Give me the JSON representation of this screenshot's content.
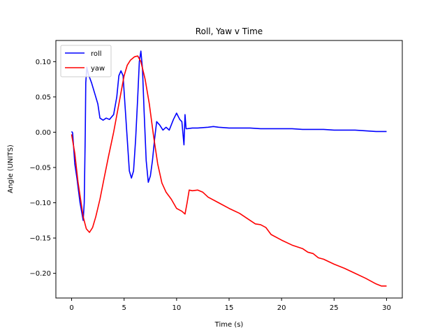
{
  "chart_data": {
    "type": "line",
    "title": "Roll, Yaw v Time",
    "xlabel": "Time (s)",
    "ylabel": "Angle (UNITS)",
    "xlim": [
      -1.5,
      31.5
    ],
    "ylim": [
      -0.235,
      0.13
    ],
    "xticks": [
      0,
      5,
      10,
      15,
      20,
      25,
      30
    ],
    "xtick_labels": [
      "0",
      "5",
      "10",
      "15",
      "20",
      "25",
      "30"
    ],
    "yticks": [
      0.1,
      0.05,
      0.0,
      -0.05,
      -0.1,
      -0.15,
      -0.2
    ],
    "ytick_labels": [
      "0.10",
      "0.05",
      "0.00",
      "−0.05",
      "−0.10",
      "−0.15",
      "−0.20"
    ],
    "grid": false,
    "legend": "upper left",
    "series": [
      {
        "name": "roll",
        "color": "#0000ff",
        "points": [
          [
            0,
            0.001
          ],
          [
            0.1,
            -0.001
          ],
          [
            0.3,
            -0.045
          ],
          [
            0.5,
            -0.065
          ],
          [
            0.8,
            -0.1
          ],
          [
            1.1,
            -0.125
          ],
          [
            1.2,
            -0.1
          ],
          [
            1.3,
            0.0
          ],
          [
            1.35,
            0.07
          ],
          [
            1.45,
            0.092
          ],
          [
            1.6,
            0.082
          ],
          [
            1.9,
            0.07
          ],
          [
            2.2,
            0.055
          ],
          [
            2.5,
            0.04
          ],
          [
            2.7,
            0.02
          ],
          [
            3.0,
            0.017
          ],
          [
            3.3,
            0.02
          ],
          [
            3.6,
            0.018
          ],
          [
            4.0,
            0.025
          ],
          [
            4.3,
            0.05
          ],
          [
            4.5,
            0.08
          ],
          [
            4.7,
            0.087
          ],
          [
            4.9,
            0.08
          ],
          [
            5.1,
            0.035
          ],
          [
            5.3,
            -0.01
          ],
          [
            5.5,
            -0.055
          ],
          [
            5.7,
            -0.065
          ],
          [
            5.9,
            -0.055
          ],
          [
            6.1,
            -0.01
          ],
          [
            6.3,
            0.05
          ],
          [
            6.45,
            0.1
          ],
          [
            6.6,
            0.115
          ],
          [
            6.75,
            0.09
          ],
          [
            6.9,
            0.03
          ],
          [
            7.1,
            -0.04
          ],
          [
            7.3,
            -0.071
          ],
          [
            7.5,
            -0.062
          ],
          [
            7.7,
            -0.04
          ],
          [
            7.9,
            -0.01
          ],
          [
            8.1,
            0.015
          ],
          [
            8.4,
            0.01
          ],
          [
            8.7,
            0.003
          ],
          [
            9.0,
            0.007
          ],
          [
            9.3,
            0.003
          ],
          [
            9.7,
            0.018
          ],
          [
            10.0,
            0.027
          ],
          [
            10.3,
            0.018
          ],
          [
            10.5,
            0.015
          ],
          [
            10.7,
            -0.018
          ],
          [
            10.8,
            0.025
          ],
          [
            10.9,
            0.005
          ],
          [
            11.0,
            0.005
          ],
          [
            11.5,
            0.006
          ],
          [
            12,
            0.006
          ],
          [
            13,
            0.007
          ],
          [
            13.5,
            0.008
          ],
          [
            14,
            0.007
          ],
          [
            15,
            0.006
          ],
          [
            16,
            0.006
          ],
          [
            17,
            0.006
          ],
          [
            18,
            0.005
          ],
          [
            19,
            0.005
          ],
          [
            20,
            0.005
          ],
          [
            21,
            0.005
          ],
          [
            22,
            0.004
          ],
          [
            23,
            0.004
          ],
          [
            24,
            0.004
          ],
          [
            25,
            0.003
          ],
          [
            26,
            0.003
          ],
          [
            27,
            0.003
          ],
          [
            28,
            0.002
          ],
          [
            29,
            0.001
          ],
          [
            30,
            0.001
          ]
        ]
      },
      {
        "name": "yaw",
        "color": "#ff0000",
        "points": [
          [
            0,
            -0.003
          ],
          [
            0.3,
            -0.03
          ],
          [
            0.6,
            -0.07
          ],
          [
            0.9,
            -0.1
          ],
          [
            1.1,
            -0.12
          ],
          [
            1.4,
            -0.137
          ],
          [
            1.7,
            -0.142
          ],
          [
            2.0,
            -0.135
          ],
          [
            2.3,
            -0.12
          ],
          [
            2.7,
            -0.095
          ],
          [
            3.1,
            -0.065
          ],
          [
            3.5,
            -0.035
          ],
          [
            4.0,
            0.0
          ],
          [
            4.5,
            0.04
          ],
          [
            5.0,
            0.08
          ],
          [
            5.3,
            0.095
          ],
          [
            5.6,
            0.102
          ],
          [
            6.0,
            0.107
          ],
          [
            6.3,
            0.108
          ],
          [
            6.6,
            0.1
          ],
          [
            7.0,
            0.075
          ],
          [
            7.4,
            0.04
          ],
          [
            7.8,
            -0.005
          ],
          [
            8.2,
            -0.045
          ],
          [
            8.6,
            -0.072
          ],
          [
            9.0,
            -0.085
          ],
          [
            9.5,
            -0.095
          ],
          [
            10.0,
            -0.108
          ],
          [
            10.5,
            -0.112
          ],
          [
            10.8,
            -0.116
          ],
          [
            11.0,
            -0.1
          ],
          [
            11.2,
            -0.082
          ],
          [
            11.5,
            -0.083
          ],
          [
            12,
            -0.082
          ],
          [
            12.5,
            -0.085
          ],
          [
            13,
            -0.092
          ],
          [
            14,
            -0.1
          ],
          [
            15,
            -0.108
          ],
          [
            16,
            -0.115
          ],
          [
            17,
            -0.125
          ],
          [
            17.5,
            -0.13
          ],
          [
            18,
            -0.131
          ],
          [
            18.5,
            -0.135
          ],
          [
            19,
            -0.145
          ],
          [
            20,
            -0.153
          ],
          [
            21,
            -0.16
          ],
          [
            22,
            -0.165
          ],
          [
            22.5,
            -0.17
          ],
          [
            23,
            -0.172
          ],
          [
            23.5,
            -0.178
          ],
          [
            24,
            -0.18
          ],
          [
            25,
            -0.187
          ],
          [
            26,
            -0.193
          ],
          [
            27,
            -0.2
          ],
          [
            28,
            -0.207
          ],
          [
            29,
            -0.215
          ],
          [
            29.5,
            -0.218
          ],
          [
            30,
            -0.218
          ]
        ]
      }
    ]
  }
}
